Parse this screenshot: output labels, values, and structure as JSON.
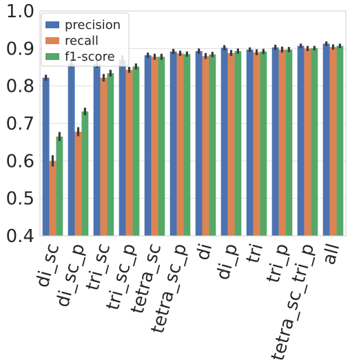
{
  "chart_data": {
    "type": "bar",
    "title": "",
    "xlabel": "",
    "ylabel": "",
    "ylim": [
      0.4,
      1.0
    ],
    "yticks": [
      "0.4",
      "0.5",
      "0.6",
      "0.7",
      "0.8",
      "0.9",
      "1.0"
    ],
    "grid": true,
    "legend_placement": "top-left",
    "categories": [
      "di_sc",
      "di_sc_p",
      "tri_sc",
      "tri_sc_p",
      "tetra_sc",
      "tetra_sc_p",
      "di",
      "di_p",
      "tri",
      "tri_p",
      "tetra_sc_tri_p",
      "all"
    ],
    "series": [
      {
        "name": "precision",
        "color": "#4c72b0",
        "values": [
          0.822,
          0.86,
          0.858,
          0.87,
          0.882,
          0.892,
          0.893,
          0.902,
          0.897,
          0.903,
          0.907,
          0.913
        ],
        "error": [
          0.008,
          0.01,
          0.009,
          0.012,
          0.007,
          0.007,
          0.007,
          0.007,
          0.006,
          0.007,
          0.006,
          0.006
        ]
      },
      {
        "name": "recall",
        "color": "#dd8452",
        "values": [
          0.6,
          0.678,
          0.822,
          0.843,
          0.878,
          0.887,
          0.88,
          0.888,
          0.89,
          0.897,
          0.9,
          0.904
        ],
        "error": [
          0.015,
          0.012,
          0.01,
          0.008,
          0.008,
          0.007,
          0.008,
          0.008,
          0.008,
          0.008,
          0.007,
          0.007
        ]
      },
      {
        "name": "f1-score",
        "color": "#55a868",
        "values": [
          0.665,
          0.732,
          0.834,
          0.852,
          0.878,
          0.885,
          0.884,
          0.893,
          0.892,
          0.897,
          0.901,
          0.907
        ],
        "error": [
          0.012,
          0.01,
          0.009,
          0.008,
          0.008,
          0.007,
          0.007,
          0.007,
          0.007,
          0.007,
          0.006,
          0.006
        ]
      }
    ]
  }
}
